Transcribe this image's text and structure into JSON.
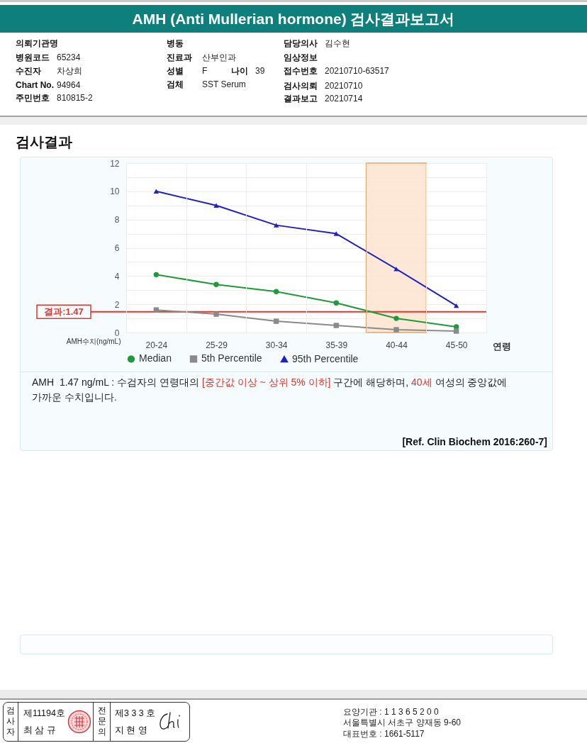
{
  "chart_data": {
    "type": "line",
    "title": "AMH (Anti Mullerian hormone) 검사결과보고서",
    "subtitle": "검사결과",
    "xlabel": "연령",
    "ylabel": "AMH수치(ng/mL)",
    "categories": [
      "20-24",
      "25-29",
      "30-34",
      "35-39",
      "40-44",
      "45-50"
    ],
    "series": [
      {
        "name": "Median",
        "color": "#1f9a3a",
        "marker": "circle",
        "values": [
          4.1,
          3.4,
          2.9,
          2.1,
          1.0,
          0.4
        ]
      },
      {
        "name": "5th Percentile",
        "color": "#8a8a8a",
        "marker": "square",
        "values": [
          1.6,
          1.3,
          0.8,
          0.5,
          0.2,
          0.1
        ]
      },
      {
        "name": "95th Percentile",
        "color": "#2020c8",
        "marker": "triangle",
        "values": [
          10.0,
          9.0,
          7.6,
          7.0,
          4.5,
          1.9
        ]
      }
    ],
    "ylim": [
      0,
      12
    ],
    "yticks": [
      0,
      {
        "value": 1,
        "label": null
      },
      2,
      {
        "value": 3,
        "label": null
      },
      4,
      {
        "value": 5,
        "label": null
      },
      6,
      {
        "value": 7,
        "label": null
      },
      8,
      {
        "value": 9,
        "label": null
      },
      10,
      {
        "value": 11,
        "label": null
      },
      12
    ],
    "grid": true,
    "legend": "bottom",
    "ref_lines": [
      {
        "axis": "y",
        "value": 1.47,
        "label": "결과:1.47",
        "color": "#e8352b"
      }
    ],
    "bands": [
      {
        "axis": "x",
        "from": "40-44",
        "to": "40-44",
        "color": "#fde3cf"
      }
    ],
    "annotations": [
      "의뢰기관명",
      "병동",
      "담당의사",
      "김수현",
      "병원코드",
      "65234",
      "진료과",
      "산부인과",
      "임상정보",
      "수진자",
      "차상희",
      "성별",
      "F",
      "나이",
      "39",
      "접수번호",
      "20210710-63517",
      "Chart No.",
      "94964",
      "검체",
      "SST Serum",
      "검사의뢰",
      "20210710",
      "주민번호",
      "810815-2",
      "결과보고",
      "20210714",
      "AMH  1.47 ng/mL : 수검자의 연령대의",
      "[중간값 이상 ~ 상위 5% 이하]",
      "구간에 해당하며,",
      "40세",
      "여성의 중앙값에",
      "가까운 수치입니다.",
      "[Ref. Clin Biochem 2016:260-7]",
      "검사자",
      "제11194호",
      "최 삼 규",
      "전문의",
      "제3 3 3 호",
      "지 현 영",
      "요양기관 : 1 1 3 6 5 2 0 0",
      "서울특별시 서초구 양재동 9-60",
      "대표번호 : 1661-5117"
    ]
  }
}
